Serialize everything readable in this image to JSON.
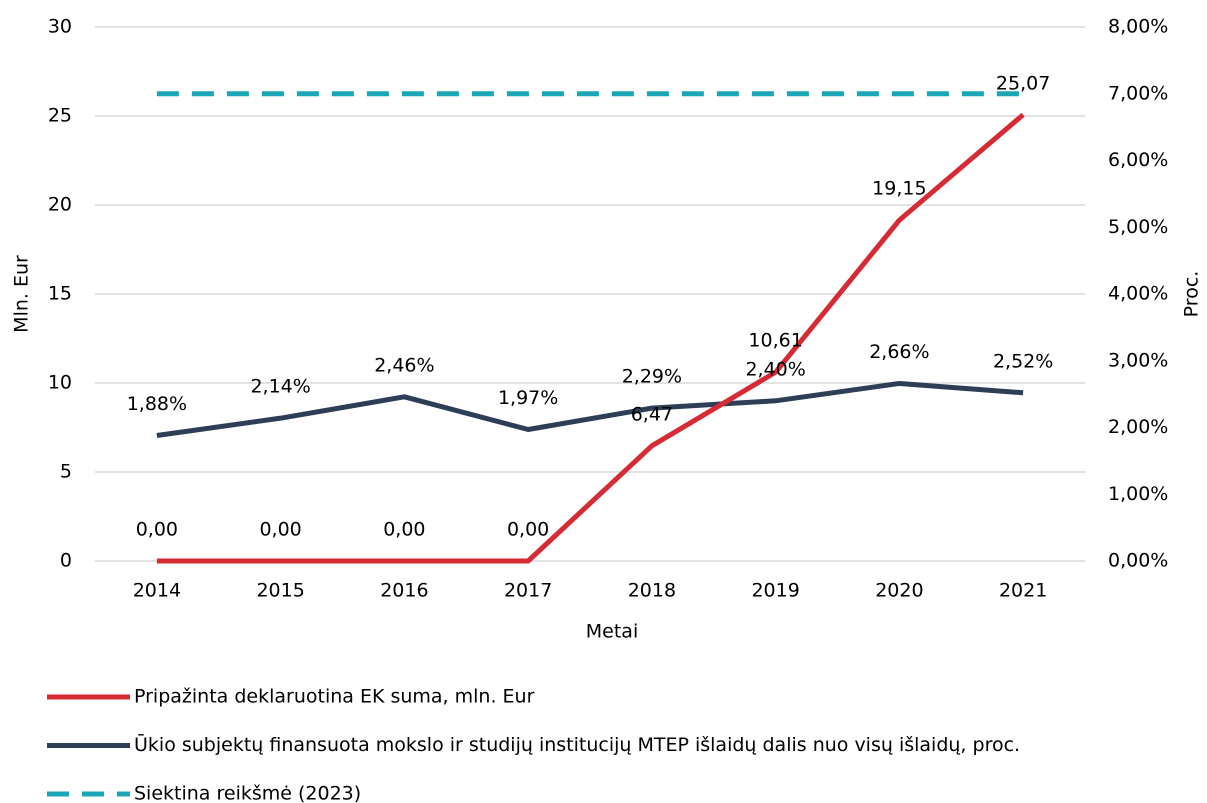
{
  "chart_data": {
    "type": "line",
    "x_label": "Metai",
    "y_label": "Mln. Eur",
    "y2_label": "Proc.",
    "categories": [
      "2014",
      "2015",
      "2016",
      "2017",
      "2018",
      "2019",
      "2020",
      "2021"
    ],
    "series": [
      {
        "name": "Pripažinta deklaruotina EK suma, mln. Eur",
        "color": "#d62a35",
        "axis": "y",
        "values": [
          0,
          0,
          0,
          0,
          6.47,
          10.61,
          19.15,
          25.07
        ],
        "value_labels": [
          "0,00",
          "0,00",
          "0,00",
          "0,00",
          "6,47",
          "10,61",
          "19,15",
          "25,07"
        ]
      },
      {
        "name": "Ūkio subjektų finansuota mokslo ir studijų institucijų MTEP išlaidų dalis nuo visų išlaidų, proc.",
        "color": "#2e3e57",
        "axis": "y2",
        "values": [
          1.88,
          2.14,
          2.46,
          1.97,
          2.29,
          2.4,
          2.66,
          2.52
        ],
        "value_labels": [
          "1,88%",
          "2,14%",
          "2,46%",
          "1,97%",
          "2,29%",
          "2,40%",
          "2,66%",
          "2,52%"
        ]
      },
      {
        "name": "Siektina reikšmė (2023)",
        "color": "#1aa6b7",
        "axis": "y2",
        "dashed": true,
        "values": [
          7,
          7,
          7,
          7,
          7,
          7,
          7,
          7
        ]
      }
    ],
    "ylim": [
      0,
      30
    ],
    "yticks": [
      0,
      5,
      10,
      15,
      20,
      25,
      30
    ],
    "y2lim": [
      0,
      8
    ],
    "y2ticks": [
      {
        "value": 0,
        "label": "0,00%"
      },
      {
        "value": 1,
        "label": "1,00%"
      },
      {
        "value": 2,
        "label": "2,00%"
      },
      {
        "value": 3,
        "label": "3,00%"
      },
      {
        "value": 4,
        "label": "4,00%"
      },
      {
        "value": 5,
        "label": "5,00%"
      },
      {
        "value": 6,
        "label": "6,00%"
      },
      {
        "value": 7,
        "label": "7,00%"
      },
      {
        "value": 8,
        "label": "8,00%"
      }
    ],
    "grid": true,
    "legend": "bottom"
  }
}
